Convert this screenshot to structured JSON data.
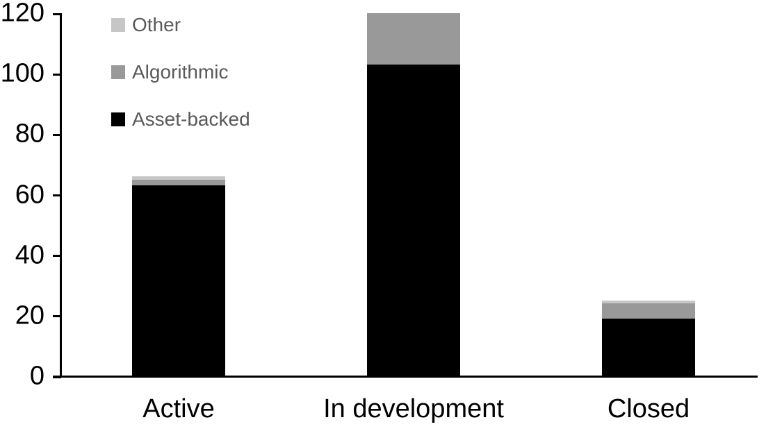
{
  "chart_data": {
    "type": "bar",
    "stacked": true,
    "title": "",
    "xlabel": "",
    "ylabel": "",
    "categories": [
      "Active",
      "In development",
      "Closed"
    ],
    "series": [
      {
        "name": "Asset-backed",
        "color": "#000000",
        "values": [
          63,
          103,
          19
        ]
      },
      {
        "name": "Algorithmic",
        "color": "#999999",
        "values": [
          2,
          17,
          5
        ]
      },
      {
        "name": "Other",
        "color": "#c6c6c6",
        "values": [
          1,
          0,
          1
        ]
      }
    ],
    "totals": [
      66,
      120,
      25
    ],
    "ylim": [
      0,
      120
    ],
    "ytick_interval": 20,
    "ytick_labels": [
      "0",
      "20",
      "40",
      "60",
      "80",
      "100",
      "120"
    ],
    "grid": false,
    "legend_position": "top-left-inside",
    "legend_order": [
      "Other",
      "Algorithmic",
      "Asset-backed"
    ],
    "colors": {
      "axis": "#000000",
      "tick_label": "#000000",
      "category_label": "#000000",
      "legend_text": "#595959",
      "background": "#ffffff"
    }
  }
}
